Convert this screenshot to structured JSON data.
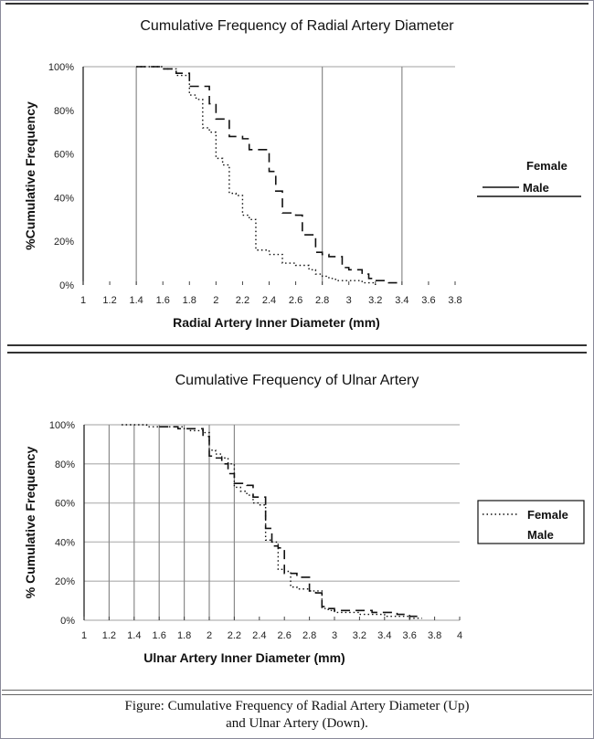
{
  "caption": {
    "line1": "Figure: Cumulative Frequency of Radial Artery Diameter (Up)",
    "line2": "and Ulnar Artery (Down)."
  },
  "chart_data": [
    {
      "type": "line",
      "title": "Cumulative Frequency of Radial Artery Diameter",
      "xlabel": "Radial Artery Inner Diameter (mm)",
      "ylabel": "%Cumulative Frequency",
      "xlim": [
        1,
        3.8
      ],
      "ylim": [
        0,
        100
      ],
      "x_ticks": [
        "1",
        "1.2",
        "1.4",
        "1.6",
        "1.8",
        "2",
        "2.2",
        "2.4",
        "2.6",
        "2.8",
        "3",
        "3.2",
        "3.4",
        "3.6",
        "3.8"
      ],
      "y_ticks": [
        "0%",
        "20%",
        "40%",
        "60%",
        "80%",
        "100%"
      ],
      "vertical_gridlines_at": [
        1.4,
        2.8,
        3.4
      ],
      "legend": {
        "position": "right",
        "entries": [
          "Female",
          "Male"
        ]
      },
      "series": [
        {
          "name": "Female",
          "style": "dotted",
          "points": [
            [
              1.4,
              100
            ],
            [
              1.6,
              99
            ],
            [
              1.7,
              96
            ],
            [
              1.8,
              93
            ],
            [
              1.8,
              87
            ],
            [
              1.85,
              85
            ],
            [
              1.9,
              82
            ],
            [
              1.9,
              72
            ],
            [
              1.95,
              70
            ],
            [
              2.0,
              69
            ],
            [
              2.0,
              58
            ],
            [
              2.05,
              55
            ],
            [
              2.1,
              55
            ],
            [
              2.1,
              42
            ],
            [
              2.15,
              41
            ],
            [
              2.2,
              40
            ],
            [
              2.2,
              32
            ],
            [
              2.25,
              30
            ],
            [
              2.3,
              28
            ],
            [
              2.3,
              16
            ],
            [
              2.4,
              14
            ],
            [
              2.5,
              13
            ],
            [
              2.5,
              10
            ],
            [
              2.6,
              9
            ],
            [
              2.7,
              7
            ],
            [
              2.75,
              5
            ],
            [
              2.8,
              4
            ],
            [
              2.85,
              3
            ],
            [
              2.9,
              2
            ],
            [
              3.0,
              2
            ],
            [
              3.1,
              1
            ],
            [
              3.2,
              0
            ]
          ]
        },
        {
          "name": "Male",
          "style": "solid",
          "points": [
            [
              1.4,
              100
            ],
            [
              1.55,
              100
            ],
            [
              1.6,
              99
            ],
            [
              1.7,
              99
            ],
            [
              1.7,
              97
            ],
            [
              1.8,
              96
            ],
            [
              1.8,
              91
            ],
            [
              1.85,
              91
            ],
            [
              1.95,
              83
            ],
            [
              2.0,
              76
            ],
            [
              2.1,
              75
            ],
            [
              2.1,
              68
            ],
            [
              2.2,
              67
            ],
            [
              2.25,
              62
            ],
            [
              2.3,
              62
            ],
            [
              2.4,
              52
            ],
            [
              2.45,
              43
            ],
            [
              2.5,
              42
            ],
            [
              2.5,
              33
            ],
            [
              2.6,
              32
            ],
            [
              2.65,
              23
            ],
            [
              2.75,
              15
            ],
            [
              2.8,
              14
            ],
            [
              2.85,
              13
            ],
            [
              2.95,
              8
            ],
            [
              3.0,
              7
            ],
            [
              3.1,
              5
            ],
            [
              3.15,
              3
            ],
            [
              3.2,
              2
            ],
            [
              3.3,
              1
            ],
            [
              3.4,
              1
            ]
          ]
        }
      ]
    },
    {
      "type": "line",
      "title": "Cumulative Frequency of Ulnar Artery",
      "xlabel": "Ulnar Artery Inner Diameter (mm)",
      "ylabel": "% Cumulative Frequency",
      "xlim": [
        1,
        4
      ],
      "ylim": [
        0,
        100
      ],
      "x_ticks": [
        "1",
        "1.2",
        "1.4",
        "1.6",
        "1.8",
        "2",
        "2.2",
        "2.4",
        "2.6",
        "2.8",
        "3",
        "3.2",
        "3.4",
        "3.6",
        "3.8",
        "4"
      ],
      "y_ticks": [
        "0%",
        "20%",
        "40%",
        "60%",
        "80%",
        "100%"
      ],
      "vertical_gridlines_at": [
        1.2,
        1.4,
        1.6,
        1.8,
        2.0,
        2.2
      ],
      "legend": {
        "position": "right",
        "entries": [
          "Female",
          "Male"
        ]
      },
      "series": [
        {
          "name": "Female",
          "style": "dotted",
          "points": [
            [
              1.3,
              100
            ],
            [
              1.5,
              99
            ],
            [
              1.7,
              99
            ],
            [
              1.8,
              98
            ],
            [
              1.85,
              97
            ],
            [
              1.9,
              97
            ],
            [
              1.95,
              96
            ],
            [
              2.0,
              96
            ],
            [
              2.0,
              87
            ],
            [
              2.05,
              85
            ],
            [
              2.1,
              83
            ],
            [
              2.15,
              80
            ],
            [
              2.2,
              77
            ],
            [
              2.2,
              68
            ],
            [
              2.25,
              66
            ],
            [
              2.3,
              64
            ],
            [
              2.35,
              60
            ],
            [
              2.4,
              59
            ],
            [
              2.45,
              59
            ],
            [
              2.45,
              41
            ],
            [
              2.5,
              40
            ],
            [
              2.55,
              40
            ],
            [
              2.55,
              26
            ],
            [
              2.6,
              25
            ],
            [
              2.65,
              24
            ],
            [
              2.65,
              17
            ],
            [
              2.7,
              16
            ],
            [
              2.8,
              15
            ],
            [
              2.9,
              14
            ],
            [
              2.9,
              6
            ],
            [
              2.95,
              5
            ],
            [
              3.0,
              4
            ],
            [
              3.1,
              4
            ],
            [
              3.2,
              3
            ],
            [
              3.3,
              3
            ],
            [
              3.4,
              2
            ],
            [
              3.5,
              2
            ],
            [
              3.6,
              1
            ],
            [
              3.7,
              1
            ]
          ]
        },
        {
          "name": "Male",
          "style": "solid",
          "points": [
            [
              1.6,
              99
            ],
            [
              1.7,
              99
            ],
            [
              1.75,
              98
            ],
            [
              1.8,
              98
            ],
            [
              1.95,
              94
            ],
            [
              2.0,
              94
            ],
            [
              2.0,
              84
            ],
            [
              2.05,
              83
            ],
            [
              2.1,
              80
            ],
            [
              2.15,
              75
            ],
            [
              2.2,
              75
            ],
            [
              2.2,
              70
            ],
            [
              2.25,
              70
            ],
            [
              2.3,
              69
            ],
            [
              2.35,
              63
            ],
            [
              2.45,
              47
            ],
            [
              2.5,
              46
            ],
            [
              2.5,
              38
            ],
            [
              2.55,
              37
            ],
            [
              2.6,
              24
            ],
            [
              2.7,
              22
            ],
            [
              2.75,
              22
            ],
            [
              2.8,
              15
            ],
            [
              2.85,
              14
            ],
            [
              2.9,
              14
            ],
            [
              2.9,
              7
            ],
            [
              2.95,
              6
            ],
            [
              3.0,
              5
            ],
            [
              3.1,
              5
            ],
            [
              3.2,
              5
            ],
            [
              3.3,
              4
            ],
            [
              3.5,
              3
            ],
            [
              3.6,
              2
            ],
            [
              3.7,
              2
            ]
          ]
        }
      ]
    }
  ]
}
